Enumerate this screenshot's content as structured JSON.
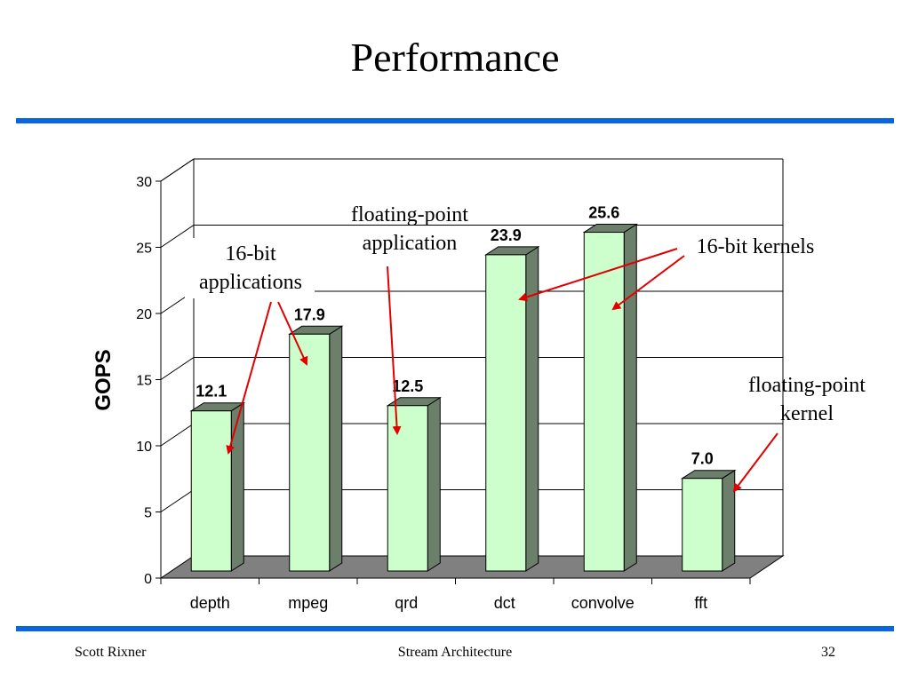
{
  "slide": {
    "title": "Performance",
    "footer_left": "Scott Rixner",
    "footer_center": "Stream Architecture",
    "footer_right": "32"
  },
  "colors": {
    "accent_rule": "#0a64e6",
    "bar_front": "#ccffcc",
    "bar_side": "#6b7f6b",
    "floor": "#808080",
    "arrow": "#e00000"
  },
  "chart_data": {
    "type": "bar",
    "title": "",
    "xlabel": "",
    "ylabel": "GOPS",
    "ylim": [
      0,
      30
    ],
    "yticks": [
      0,
      5,
      10,
      15,
      20,
      25,
      30
    ],
    "grid": true,
    "three_d": true,
    "categories": [
      "depth",
      "mpeg",
      "qrd",
      "dct",
      "convolve",
      "fft"
    ],
    "values": [
      12.1,
      17.9,
      12.5,
      23.9,
      25.6,
      7.0
    ],
    "value_labels": [
      "12.1",
      "17.9",
      "12.5",
      "23.9",
      "25.6",
      "7.0"
    ],
    "annotations": [
      {
        "text": [
          "16-bit",
          "applications"
        ],
        "targets": [
          "depth",
          "mpeg"
        ]
      },
      {
        "text": [
          "floating-point",
          "application"
        ],
        "targets": [
          "qrd"
        ]
      },
      {
        "text": [
          "16-bit kernels"
        ],
        "targets": [
          "dct",
          "convolve"
        ]
      },
      {
        "text": [
          "floating-point",
          "kernel"
        ],
        "targets": [
          "fft"
        ]
      }
    ]
  }
}
